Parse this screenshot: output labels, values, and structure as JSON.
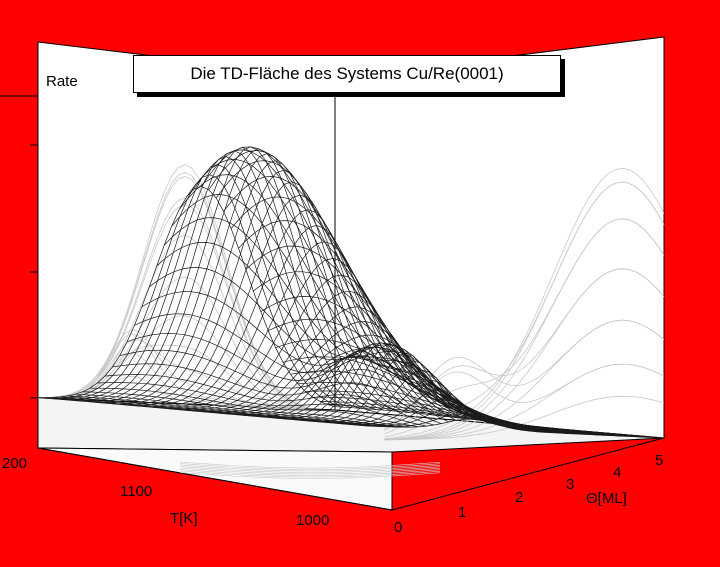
{
  "colors": {
    "frame": "#ff0000",
    "mesh": "#1a1a1a",
    "projection": "#c8c8c8",
    "panel": "#ffffff"
  },
  "chart_data": {
    "type": "surface",
    "title": "Die TD-Fläche des Systems Cu/Re(0001)",
    "zlabel": "Rate",
    "xlabel": "T[K]",
    "ylabel": "Θ[ML]",
    "x_ticks": [
      "1000",
      "1100",
      "200"
    ],
    "y_ticks": [
      "0",
      "1",
      "2",
      "3",
      "4",
      "5"
    ],
    "xlim": [
      950,
      1200
    ],
    "ylim": [
      0,
      5
    ],
    "surface": {
      "description_peaks": [
        {
          "T": 1080,
          "theta": 4.5,
          "rate_rel": 1.0
        },
        {
          "T": 1110,
          "theta": 1.2,
          "rate_rel": 0.28
        }
      ]
    },
    "projections": [
      "back-left wall",
      "back-right wall",
      "floor"
    ]
  }
}
